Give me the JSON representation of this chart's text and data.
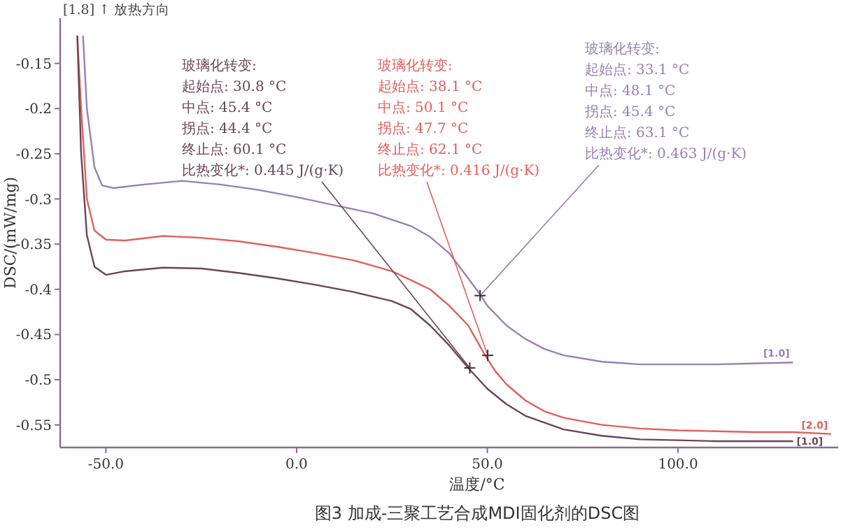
{
  "chart_data": {
    "type": "line",
    "title": "图3 加成-三聚工艺合成MDI固化剂的DSC图",
    "xlabel": "温度/°C",
    "ylabel": "DSC/(mW/mg)",
    "xlim": [
      -62,
      142
    ],
    "ylim": [
      -0.575,
      -0.1
    ],
    "xticks": [
      {
        "value": -50,
        "label": "-50.0"
      },
      {
        "value": 0,
        "label": "0.0"
      },
      {
        "value": 50,
        "label": "50.0"
      },
      {
        "value": 100,
        "label": "100.0"
      }
    ],
    "yticks": [
      -0.15,
      -0.2,
      -0.25,
      -0.3,
      -0.35,
      -0.4,
      -0.45,
      -0.5,
      -0.55
    ],
    "grid": false,
    "line_style": "solid",
    "series": [
      {
        "name": "[1.0]",
        "color": "#9a7fb4",
        "x": [
          -56,
          -55,
          -53,
          -51,
          -48,
          -40,
          -30,
          -20,
          -10,
          0,
          10,
          20,
          30,
          35,
          40,
          45,
          48,
          50,
          55,
          60,
          65,
          70,
          80,
          90,
          100,
          110,
          120,
          130
        ],
        "values": [
          -0.12,
          -0.2,
          -0.265,
          -0.285,
          -0.288,
          -0.284,
          -0.28,
          -0.284,
          -0.29,
          -0.298,
          -0.307,
          -0.316,
          -0.33,
          -0.342,
          -0.36,
          -0.388,
          -0.405,
          -0.418,
          -0.44,
          -0.455,
          -0.466,
          -0.473,
          -0.48,
          -0.483,
          -0.483,
          -0.483,
          -0.482,
          -0.481
        ]
      },
      {
        "name": "[2.0]",
        "color": "#e0605c",
        "x": [
          -57.5,
          -56.5,
          -55,
          -53,
          -50,
          -45,
          -35,
          -25,
          -15,
          -5,
          5,
          15,
          25,
          35,
          40,
          45,
          47,
          49,
          52,
          55,
          60,
          65,
          70,
          80,
          90,
          100,
          110,
          120,
          130,
          140
        ],
        "values": [
          -0.12,
          -0.2,
          -0.3,
          -0.335,
          -0.345,
          -0.346,
          -0.341,
          -0.343,
          -0.347,
          -0.353,
          -0.36,
          -0.368,
          -0.38,
          -0.4,
          -0.418,
          -0.44,
          -0.455,
          -0.47,
          -0.49,
          -0.505,
          -0.523,
          -0.535,
          -0.542,
          -0.55,
          -0.554,
          -0.556,
          -0.557,
          -0.558,
          -0.558,
          -0.56
        ]
      },
      {
        "name": "[1.0]",
        "color": "#6b4456",
        "x": [
          -57.5,
          -56.5,
          -55,
          -53,
          -50,
          -45,
          -35,
          -25,
          -15,
          -5,
          5,
          15,
          25,
          30,
          35,
          40,
          45,
          50,
          55,
          60,
          70,
          80,
          90,
          100,
          110,
          120,
          130
        ],
        "values": [
          -0.12,
          -0.25,
          -0.34,
          -0.375,
          -0.384,
          -0.38,
          -0.376,
          -0.377,
          -0.382,
          -0.388,
          -0.395,
          -0.403,
          -0.413,
          -0.422,
          -0.44,
          -0.462,
          -0.487,
          -0.51,
          -0.527,
          -0.54,
          -0.555,
          -0.562,
          -0.566,
          -0.567,
          -0.568,
          -0.568,
          -0.568
        ]
      }
    ],
    "annotations": [
      "[1.8] ↑ 放热方向",
      {
        "text": "玻璃化转变:\n起始点: 30.8 °C\n中点: 45.4 °C\n拐点: 44.4 °C\n终止点: 60.1 °C\n比热变化*: 0.445 J/(g·K)",
        "x": 45.4,
        "y": -0.487
      },
      {
        "text": "玻璃化转变:\n起始点: 38.1 °C\n中点: 50.1 °C\n拐点: 47.7 °C\n终止点: 62.1 °C\n比热变化*: 0.416 J/(g·K)",
        "x": 50.1,
        "y": -0.473
      },
      {
        "text": "玻璃化转变:\n起始点: 33.1 °C\n中点: 48.1 °C\n拐点: 45.4 °C\n终止点: 63.1 °C\n比热变化*: 0.463 J/(g·K)",
        "x": 48.1,
        "y": -0.407
      }
    ]
  }
}
